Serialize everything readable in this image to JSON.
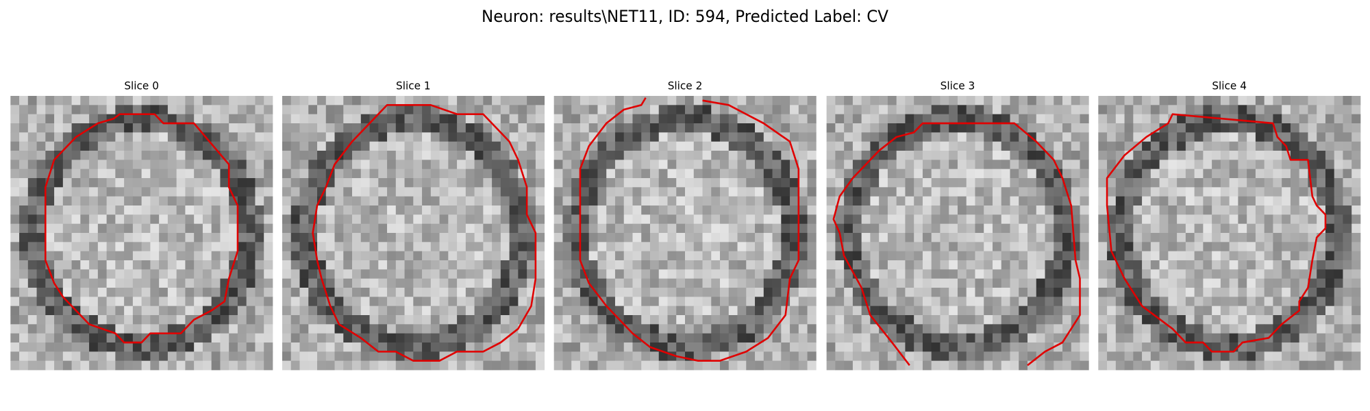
{
  "figure": {
    "title": "Neuron: results\\NET11, ID: 594, Predicted Label: CV",
    "panels": [
      {
        "title": "Slice 0"
      },
      {
        "title": "Slice 1"
      },
      {
        "title": "Slice 2"
      },
      {
        "title": "Slice 3"
      },
      {
        "title": "Slice 4"
      }
    ]
  }
}
